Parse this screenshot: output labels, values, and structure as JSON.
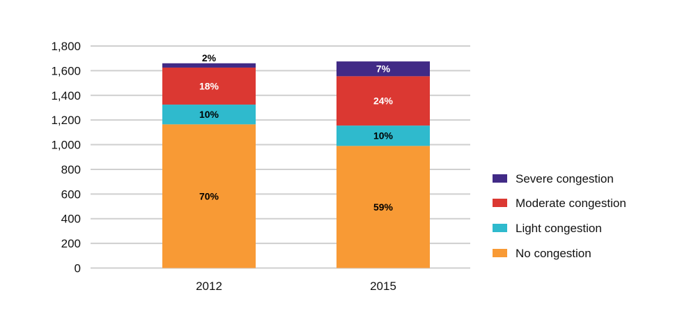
{
  "chart_data": {
    "type": "stacked-bar",
    "title": "",
    "xlabel": "",
    "ylabel": "",
    "ylim": [
      0,
      1800
    ],
    "yticks": [
      0,
      200,
      400,
      600,
      800,
      1000,
      1200,
      1400,
      1600,
      1800
    ],
    "ytick_labels": [
      "0",
      "200",
      "400",
      "600",
      "800",
      "1,000",
      "1,200",
      "1,400",
      "1,600",
      "1,800"
    ],
    "grid": true,
    "legend_position": "right",
    "categories": [
      "2012",
      "2015"
    ],
    "series": [
      {
        "name": "No congestion",
        "color": "#f89a35",
        "values": [
          1165,
          990
        ],
        "labels": [
          "70%",
          "59%"
        ],
        "label_colors": [
          "#000000",
          "#000000"
        ]
      },
      {
        "name": "Light congestion",
        "color": "#2fbacd",
        "values": [
          160,
          165
        ],
        "labels": [
          "10%",
          "10%"
        ],
        "label_colors": [
          "#000000",
          "#000000"
        ]
      },
      {
        "name": "Moderate congestion",
        "color": "#db3832",
        "values": [
          300,
          400
        ],
        "labels": [
          "18%",
          "24%"
        ],
        "label_colors": [
          "#ffffff",
          "#ffffff"
        ]
      },
      {
        "name": "Severe congestion",
        "color": "#412a86",
        "values": [
          35,
          120
        ],
        "labels": [
          "2%",
          "7%"
        ],
        "label_colors": [
          "#000000",
          "#ffffff"
        ]
      }
    ]
  }
}
